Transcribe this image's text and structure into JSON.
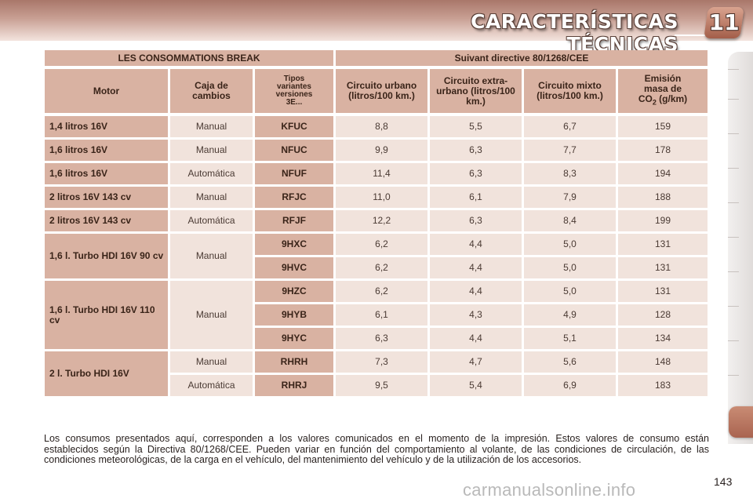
{
  "header": {
    "title": "CARACTERÍSTICAS TÉCNICAS",
    "chapter": "11"
  },
  "table": {
    "title_left": "LES CONSOMMATIONS BREAK",
    "title_right": "Suivant directive 80/1268/CEE",
    "columns": {
      "motor": "Motor",
      "caja": "Caja de cambios",
      "tipos": "Tipos variantes versiones 3E...",
      "urbano": "Circuito urbano (litros/100 km.)",
      "extra": "Circuito extra-urbano (litros/100 km.)",
      "mixto": "Circuito mixto (litros/100 km.)",
      "emision_a": "Emisión masa de",
      "emision_co": "CO",
      "emision_sub": "2",
      "emision_unit": " (g/km)"
    },
    "rows": [
      {
        "motor": "1,4 litros 16V",
        "caja": "Manual",
        "tipo": "KFUC",
        "urbano": "8,8",
        "extra": "5,5",
        "mixto": "6,7",
        "co2": "159"
      },
      {
        "motor": "1,6 litros 16V",
        "caja": "Manual",
        "tipo": "NFUC",
        "urbano": "9,9",
        "extra": "6,3",
        "mixto": "7,7",
        "co2": "178"
      },
      {
        "motor": "1,6 litros 16V",
        "caja": "Automática",
        "tipo": "NFUF",
        "urbano": "11,4",
        "extra": "6,3",
        "mixto": "8,3",
        "co2": "194"
      },
      {
        "motor": "2 litros 16V 143 cv",
        "caja": "Manual",
        "tipo": "RFJC",
        "urbano": "11,0",
        "extra": "6,1",
        "mixto": "7,9",
        "co2": "188"
      },
      {
        "motor": "2 litros 16V 143 cv",
        "caja": "Automática",
        "tipo": "RFJF",
        "urbano": "12,2",
        "extra": "6,3",
        "mixto": "8,4",
        "co2": "199"
      },
      {
        "motor": "1,6 l. Turbo HDI 16V 90 cv",
        "caja": "Manual",
        "tipo": "9HXC",
        "urbano": "6,2",
        "extra": "4,4",
        "mixto": "5,0",
        "co2": "131"
      },
      {
        "motor": "",
        "caja": "",
        "tipo": "9HVC",
        "urbano": "6,2",
        "extra": "4,4",
        "mixto": "5,0",
        "co2": "131"
      },
      {
        "motor": "1,6 l. Turbo HDI 16V 110 cv",
        "caja": "Manual",
        "tipo": "9HZC",
        "urbano": "6,2",
        "extra": "4,4",
        "mixto": "5,0",
        "co2": "131"
      },
      {
        "motor": "",
        "caja": "",
        "tipo": "9HYB",
        "urbano": "6,1",
        "extra": "4,3",
        "mixto": "4,9",
        "co2": "128"
      },
      {
        "motor": "",
        "caja": "",
        "tipo": "9HYC",
        "urbano": "6,3",
        "extra": "4,4",
        "mixto": "5,1",
        "co2": "134"
      },
      {
        "motor": "2 l. Turbo HDI 16V",
        "caja": "Manual",
        "tipo": "RHRH",
        "urbano": "7,3",
        "extra": "4,7",
        "mixto": "5,6",
        "co2": "148"
      },
      {
        "motor": "",
        "caja": "Automática",
        "tipo": "RHRJ",
        "urbano": "9,5",
        "extra": "5,4",
        "mixto": "6,9",
        "co2": "183"
      }
    ]
  },
  "footnote": "Los consumos presentados aquí, corresponden a los valores comunicados en el momento de la impresión. Estos valores de consumo están establecidos según la Directiva 80/1268/CEE. Pueden variar en función del comportamiento al volante, de las condiciones de circulación, de las condiciones meteorológicas, de la carga en el vehículo, del mantenimiento del vehículo y de la utilización de los accesorios.",
  "page_number": "143",
  "watermark": "carmanualsonline.info",
  "colors": {
    "header_cell": "#d9b2a2",
    "value_cell": "#f1e3dc",
    "accent": "#a96450"
  }
}
